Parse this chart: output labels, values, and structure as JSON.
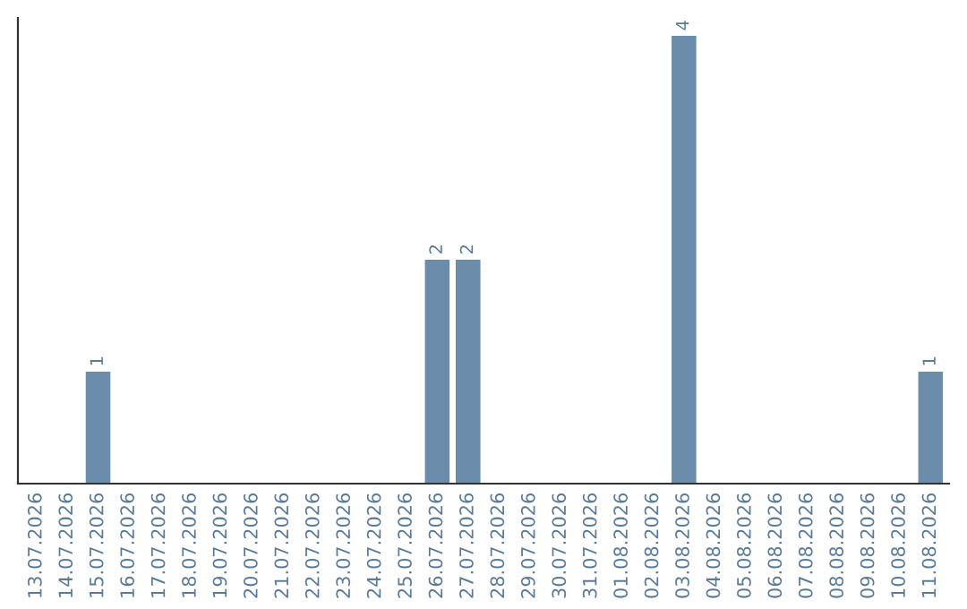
{
  "chart_data": {
    "type": "bar",
    "categories": [
      "13.07.2026",
      "14.07.2026",
      "15.07.2026",
      "16.07.2026",
      "17.07.2026",
      "18.07.2026",
      "19.07.2026",
      "20.07.2026",
      "21.07.2026",
      "22.07.2026",
      "23.07.2026",
      "24.07.2026",
      "25.07.2026",
      "26.07.2026",
      "27.07.2026",
      "28.07.2026",
      "29.07.2026",
      "30.07.2026",
      "31.07.2026",
      "01.08.2026",
      "02.08.2026",
      "03.08.2026",
      "04.08.2026",
      "05.08.2026",
      "06.08.2026",
      "07.08.2026",
      "08.08.2026",
      "09.08.2026",
      "10.08.2026",
      "11.08.2026"
    ],
    "values": [
      0,
      0,
      1,
      0,
      0,
      0,
      0,
      0,
      0,
      0,
      0,
      0,
      0,
      2,
      2,
      0,
      0,
      0,
      0,
      0,
      0,
      4,
      0,
      0,
      0,
      0,
      0,
      0,
      0,
      1
    ],
    "value_labels": [
      null,
      null,
      "1",
      null,
      null,
      null,
      null,
      null,
      null,
      null,
      null,
      null,
      null,
      "2",
      "2",
      null,
      null,
      null,
      null,
      null,
      null,
      "4",
      null,
      null,
      null,
      null,
      null,
      null,
      null,
      "1"
    ],
    "color": "#6b8cab",
    "tick_labels": "x",
    "grid": false,
    "legend": false
  }
}
